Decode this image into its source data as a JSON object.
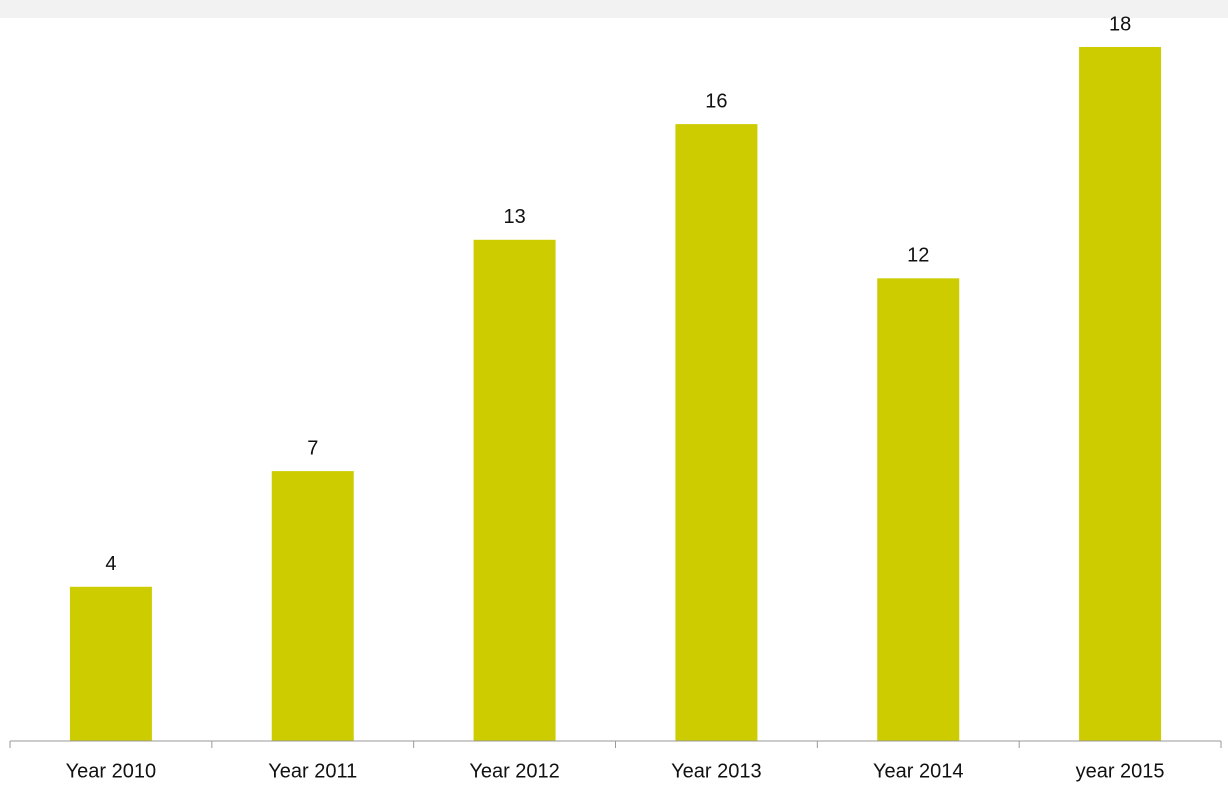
{
  "chart_data": {
    "type": "bar",
    "categories": [
      "Year 2010",
      "Year 2011",
      "Year 2012",
      "Year 2013",
      "Year 2014",
      "year 2015"
    ],
    "values": [
      4,
      7,
      13,
      16,
      12,
      18
    ],
    "color": "#cccc00",
    "ylim": [
      0,
      18
    ]
  }
}
